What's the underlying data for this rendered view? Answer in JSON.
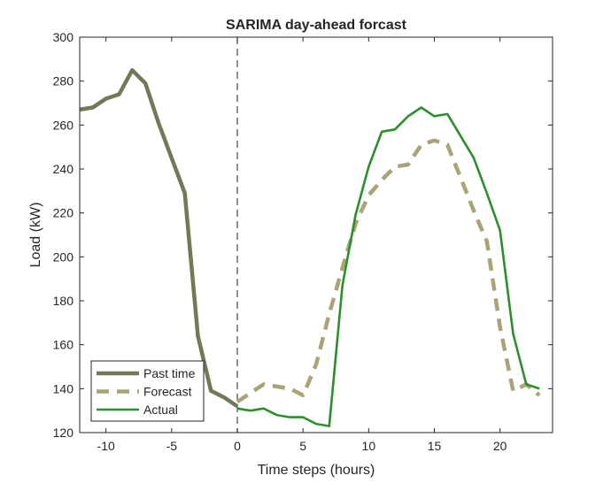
{
  "chart_data": {
    "type": "line",
    "title": "SARIMA day-ahead forcast",
    "xlabel": "Time steps (hours)",
    "ylabel": "Load (kW)",
    "xlim": [
      -12,
      24
    ],
    "ylim": [
      120,
      300
    ],
    "xticks": [
      -10,
      -5,
      0,
      5,
      10,
      15,
      20
    ],
    "yticks": [
      120,
      140,
      160,
      180,
      200,
      220,
      240,
      260,
      280,
      300
    ],
    "grid": false,
    "legend_position": "bottom-left",
    "vertical_marker_x": 0,
    "series": [
      {
        "name": "Past time",
        "color": "#707a56",
        "style": "solid",
        "x": [
          -12,
          -11,
          -10,
          -9,
          -8,
          -7,
          -6,
          -5,
          -4,
          -3,
          -2,
          -1,
          0
        ],
        "y": [
          267,
          268,
          272,
          274,
          285,
          279,
          261,
          245,
          229,
          164,
          139,
          136,
          132
        ]
      },
      {
        "name": "Forecast",
        "color": "#a8a478",
        "style": "dashed",
        "x": [
          0,
          1,
          2,
          3,
          4,
          5,
          6,
          7,
          8,
          9,
          10,
          11,
          12,
          13,
          14,
          15,
          16,
          17,
          18,
          19,
          20,
          21,
          22,
          23
        ],
        "y": [
          134,
          138,
          142,
          141,
          140,
          137,
          151,
          174,
          195,
          215,
          228,
          235,
          241,
          242,
          251,
          253,
          251,
          236,
          221,
          207,
          168,
          139,
          142,
          137
        ]
      },
      {
        "name": "Actual",
        "color": "#2c8f2c",
        "style": "solid",
        "x": [
          0,
          1,
          2,
          3,
          4,
          5,
          6,
          7,
          8,
          9,
          10,
          11,
          12,
          13,
          14,
          15,
          16,
          17,
          18,
          19,
          20,
          21,
          22,
          23
        ],
        "y": [
          131,
          130,
          131,
          128,
          127,
          127,
          124,
          123,
          187,
          219,
          241,
          257,
          258,
          264,
          268,
          264,
          265,
          255,
          245,
          229,
          212,
          165,
          142,
          140
        ]
      }
    ]
  }
}
